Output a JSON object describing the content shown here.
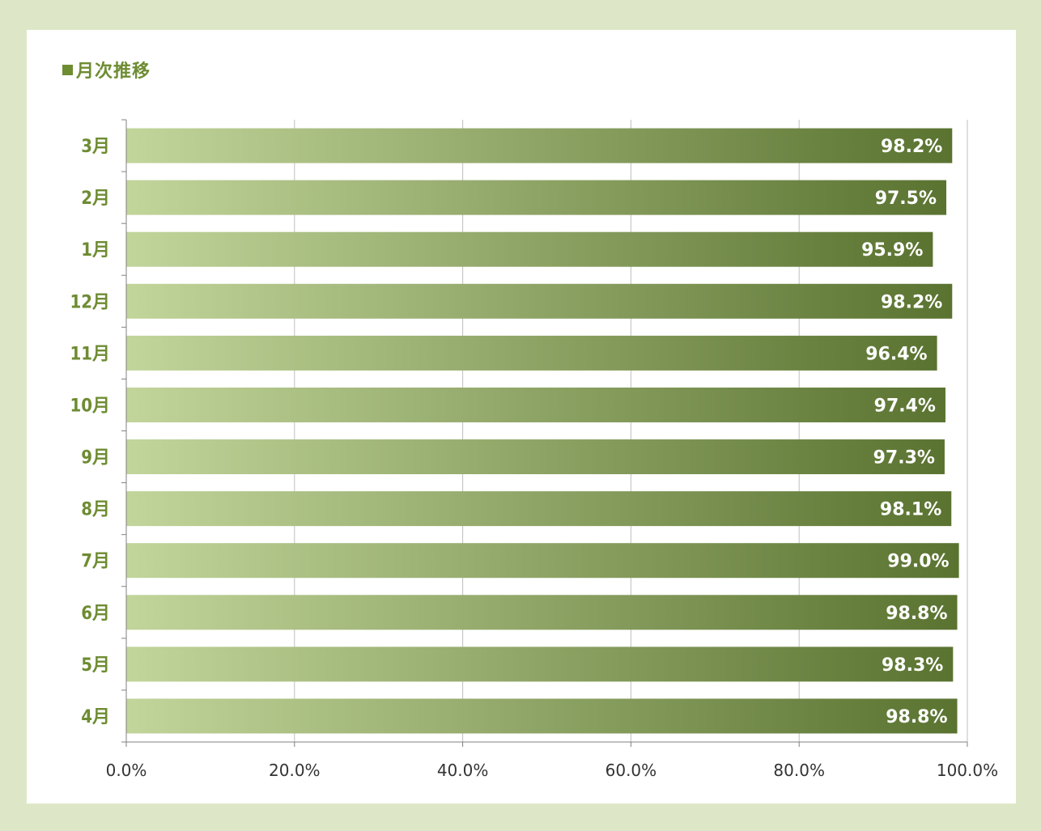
{
  "title": "月次推移",
  "colors": {
    "background": "#dde7c8",
    "panel": "#ffffff",
    "title": "#6e8c32",
    "category_label": "#6e8c32",
    "bar_gradient_start": "#c2d59b",
    "bar_gradient_end": "#5a7330",
    "value_label": "#ffffff",
    "gridline": "#bfbfbf",
    "axis": "#808080"
  },
  "chart_data": {
    "type": "bar",
    "orientation": "horizontal",
    "categories": [
      "3月",
      "2月",
      "1月",
      "12月",
      "11月",
      "10月",
      "9月",
      "8月",
      "7月",
      "6月",
      "5月",
      "4月"
    ],
    "values": [
      98.2,
      97.5,
      95.9,
      98.2,
      96.4,
      97.4,
      97.3,
      98.1,
      99.0,
      98.8,
      98.3,
      98.8
    ],
    "value_labels": [
      "98.2%",
      "97.5%",
      "95.9%",
      "98.2%",
      "96.4%",
      "97.4%",
      "97.3%",
      "98.1%",
      "99.0%",
      "98.8%",
      "98.3%",
      "98.8%"
    ],
    "xlim": [
      0,
      100
    ],
    "x_ticks": [
      0,
      20,
      40,
      60,
      80,
      100
    ],
    "x_tick_labels": [
      "0.0%",
      "20.0%",
      "40.0%",
      "60.0%",
      "80.0%",
      "100.0%"
    ],
    "grid": true,
    "legend": "none"
  }
}
